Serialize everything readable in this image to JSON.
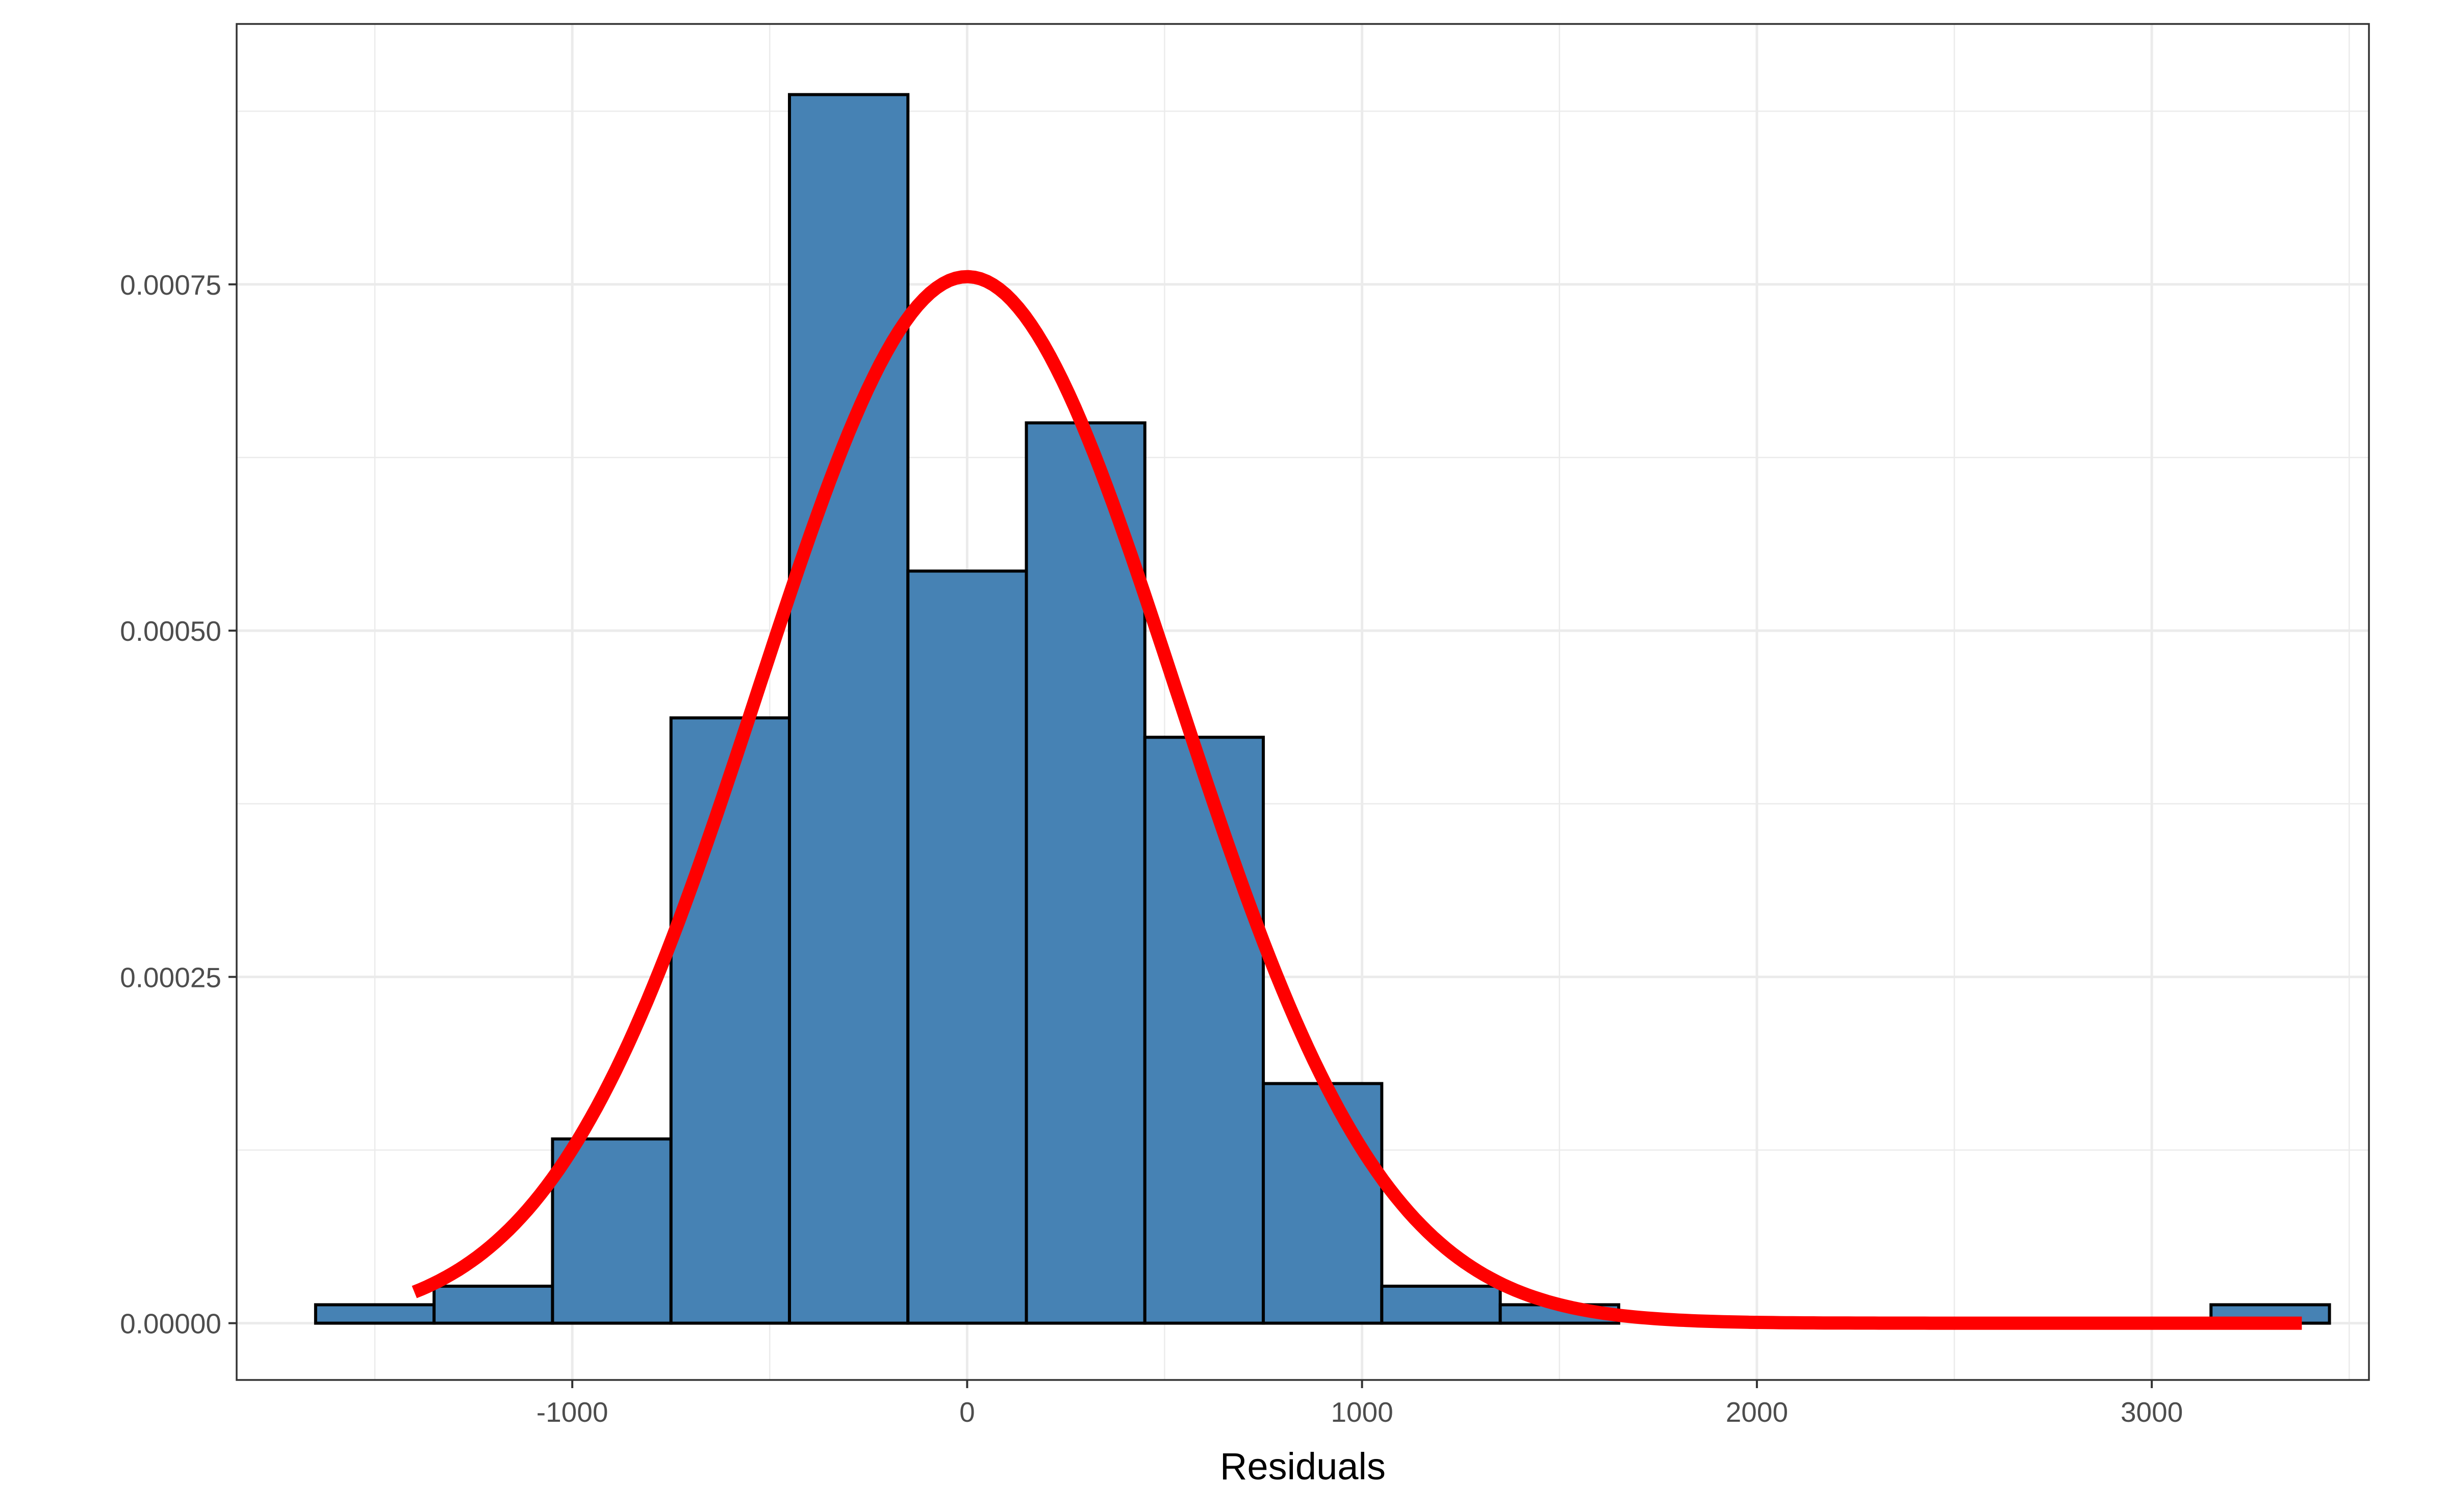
{
  "chart_data": {
    "type": "bar",
    "subtype": "histogram-with-normal-density-curve",
    "title": "",
    "xlabel": "Residuals",
    "ylabel": "",
    "xlim": [
      -1850,
      3550
    ],
    "ylim": [
      -4.1e-05,
      0.000938
    ],
    "x_ticks": [
      -1000,
      0,
      1000,
      2000,
      3000
    ],
    "x_tick_labels": [
      "-1000",
      "0",
      "1000",
      "2000",
      "3000"
    ],
    "y_ticks": [
      0,
      0.00025,
      0.0005,
      0.00075
    ],
    "y_tick_labels": [
      "0.00000",
      "0.00025",
      "0.00050",
      "0.00075"
    ],
    "grid": true,
    "bin_width": 300,
    "bins": [
      {
        "x0": -1650,
        "x1": -1350,
        "density": 1.33e-05
      },
      {
        "x0": -1350,
        "x1": -1050,
        "density": 2.67e-05
      },
      {
        "x0": -1050,
        "x1": -750,
        "density": 0.000133
      },
      {
        "x0": -750,
        "x1": -450,
        "density": 0.000437
      },
      {
        "x0": -450,
        "x1": -150,
        "density": 0.000887
      },
      {
        "x0": -150,
        "x1": 150,
        "density": 0.000543
      },
      {
        "x0": 150,
        "x1": 450,
        "density": 0.00065
      },
      {
        "x0": 450,
        "x1": 750,
        "density": 0.000423
      },
      {
        "x0": 750,
        "x1": 1050,
        "density": 0.000173
      },
      {
        "x0": 1050,
        "x1": 1350,
        "density": 2.67e-05
      },
      {
        "x0": 1350,
        "x1": 1650,
        "density": 1.33e-05
      },
      {
        "x0": 3150,
        "x1": 3450,
        "density": 1.33e-05
      }
    ],
    "density_curve": {
      "distribution": "normal",
      "mean": 0,
      "sd": 528,
      "x_range": [
        -1400,
        3380
      ],
      "color": "#FF0000"
    },
    "colors": {
      "bar_fill": "#4682B4",
      "bar_outline": "#000000",
      "grid": "#EBEBEB",
      "panel_border": "#333333",
      "background": "#FFFFFF"
    }
  }
}
